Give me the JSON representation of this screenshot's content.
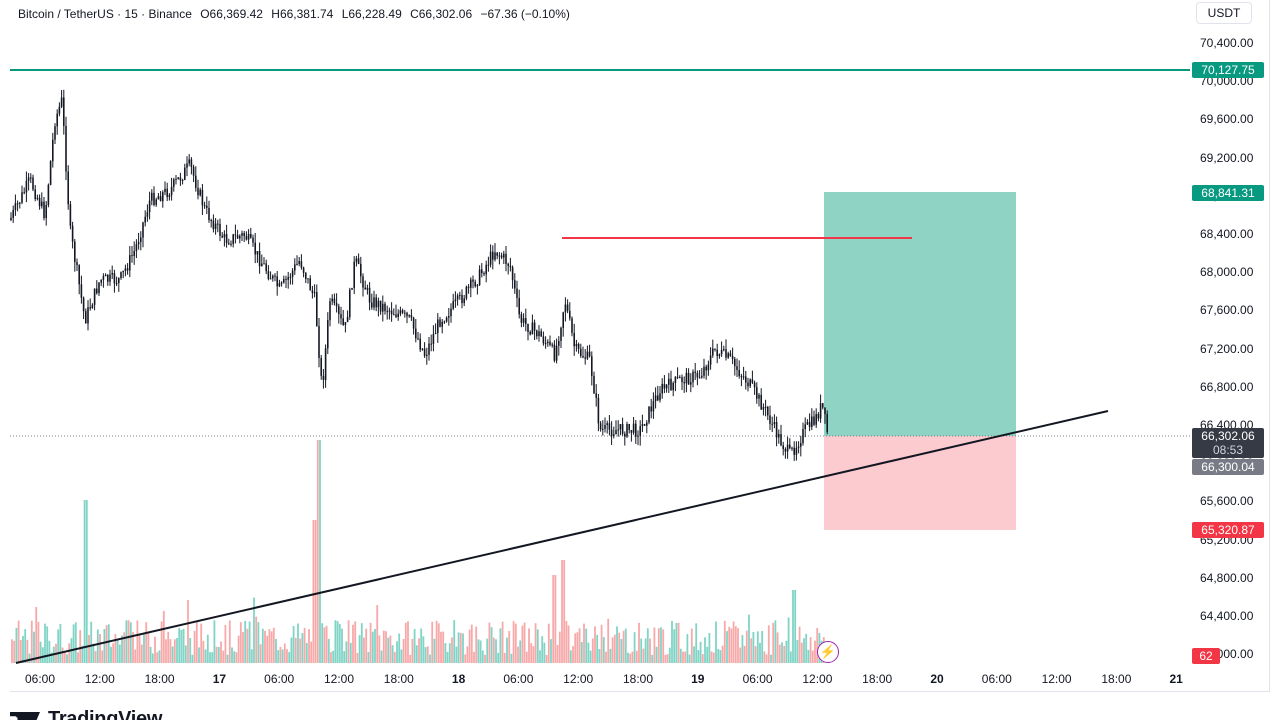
{
  "legend": {
    "symbol": "Bitcoin / TetherUS · 15 · Binance",
    "open": "O66,369.42",
    "high": "H66,381.74",
    "low": "L66,228.49",
    "close": "C66,302.06",
    "change": "−67.36 (−0.10%)"
  },
  "currency": "USDT",
  "price_axis": [
    "70,400.00",
    "70,000.00",
    "69,600.00",
    "69,200.00",
    "68,800.00",
    "68,400.00",
    "68,000.00",
    "67,600.00",
    "67,200.00",
    "66,800.00",
    "66,400.00",
    "66,000.00",
    "65,600.00",
    "65,200.00",
    "64,800.00",
    "64,400.00",
    "64,000.00"
  ],
  "time_axis": [
    {
      "label": "06:00",
      "day": false
    },
    {
      "label": "12:00",
      "day": false
    },
    {
      "label": "18:00",
      "day": false
    },
    {
      "label": "17",
      "day": true
    },
    {
      "label": "06:00",
      "day": false
    },
    {
      "label": "12:00",
      "day": false
    },
    {
      "label": "18:00",
      "day": false
    },
    {
      "label": "18",
      "day": true
    },
    {
      "label": "06:00",
      "day": false
    },
    {
      "label": "12:00",
      "day": false
    },
    {
      "label": "18:00",
      "day": false
    },
    {
      "label": "19",
      "day": true
    },
    {
      "label": "06:00",
      "day": false
    },
    {
      "label": "12:00",
      "day": false
    },
    {
      "label": "18:00",
      "day": false
    },
    {
      "label": "20",
      "day": true
    },
    {
      "label": "06:00",
      "day": false
    },
    {
      "label": "12:00",
      "day": false
    },
    {
      "label": "18:00",
      "day": false
    },
    {
      "label": "21",
      "day": true
    }
  ],
  "badges": {
    "take_profit_line": "70,127.75",
    "position_target": "68,841.31",
    "last_price": "66,302.06",
    "countdown": "08:53",
    "entry": "66,300.04",
    "stop": "65,320.87",
    "volume": "62"
  },
  "drawings": {
    "horizontal_level": 70127.75,
    "resistance_level": 68380,
    "long_position": {
      "entry": 66300.04,
      "target": 68841.31,
      "stop": 65320.87
    },
    "trendline": "ascending support"
  },
  "colors": {
    "up": "#089981",
    "down": "#f23645",
    "candle": "#131722",
    "profit_zone": "#8fd3c4",
    "loss_zone": "#fccbd0",
    "volume_up": "#7fd4c6",
    "volume_down": "#f7a9a9"
  },
  "icons": {
    "flash": "lightning-icon",
    "brand": "tradingview-logo"
  },
  "brand": "TradingView"
}
